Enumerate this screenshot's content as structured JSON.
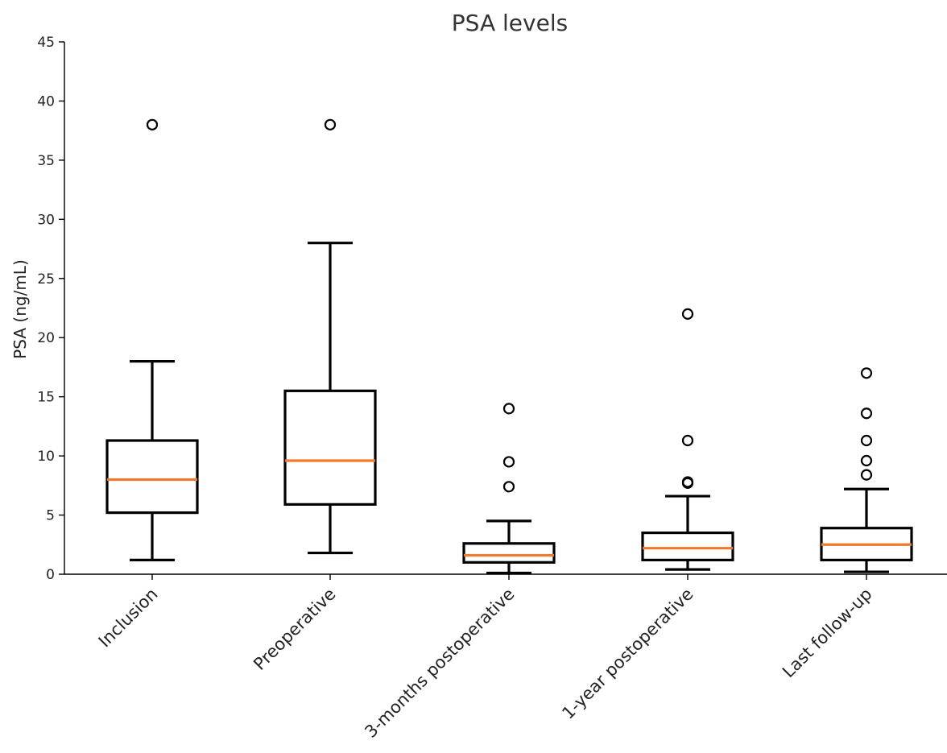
{
  "chart_data": {
    "type": "box",
    "title": "PSA levels",
    "xlabel": "",
    "ylabel": "PSA (ng/mL)",
    "ylim": [
      0,
      45
    ],
    "yticks": [
      0,
      5,
      10,
      15,
      20,
      25,
      30,
      35,
      40,
      45
    ],
    "grid": false,
    "median_color": "#f07a2e",
    "box_color": "#000000",
    "categories": [
      "Inclusion",
      "Preoperative",
      "3-months postoperative",
      "1-year postoperative",
      "Last follow-up"
    ],
    "boxes": [
      {
        "category": "Inclusion",
        "whisker_low": 1.2,
        "q1": 5.2,
        "median": 8.0,
        "q3": 11.3,
        "whisker_high": 18.0,
        "outliers": [
          38.0
        ]
      },
      {
        "category": "Preoperative",
        "whisker_low": 1.8,
        "q1": 5.9,
        "median": 9.6,
        "q3": 15.5,
        "whisker_high": 28.0,
        "outliers": [
          38.0
        ]
      },
      {
        "category": "3-months postoperative",
        "whisker_low": 0.1,
        "q1": 1.0,
        "median": 1.6,
        "q3": 2.6,
        "whisker_high": 4.5,
        "outliers": [
          7.4,
          9.5,
          14.0
        ]
      },
      {
        "category": "1-year postoperative",
        "whisker_low": 0.4,
        "q1": 1.2,
        "median": 2.2,
        "q3": 3.5,
        "whisker_high": 6.6,
        "outliers": [
          7.7,
          7.8,
          11.3,
          22.0
        ]
      },
      {
        "category": "Last follow-up",
        "whisker_low": 0.2,
        "q1": 1.2,
        "median": 2.5,
        "q3": 3.9,
        "whisker_high": 7.2,
        "outliers": [
          8.4,
          9.6,
          11.3,
          13.6,
          17.0
        ]
      }
    ]
  }
}
